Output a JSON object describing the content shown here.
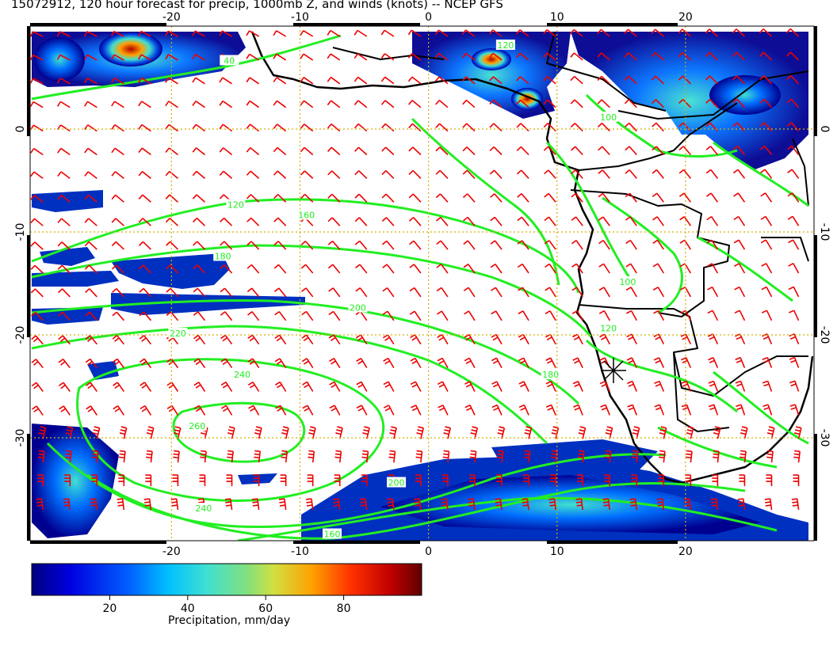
{
  "title": "15072912, 120 hour forecast for precip, 1000mb Z, and winds (knots) -- NCEP GFS",
  "map": {
    "lon_range": [
      -31,
      30
    ],
    "lat_range": [
      -40,
      10
    ],
    "lon_ticks": [
      "-20",
      "-10",
      "0",
      "10",
      "20"
    ],
    "lat_ticks": [
      "0",
      "-10",
      "-20",
      "-30"
    ],
    "grid": "dotted",
    "contour_color": "#22ee22",
    "wind_barb_color": "#ee0000",
    "coastline_color": "#000000",
    "contour_labels": [
      {
        "text": "40",
        "lon": -15.5,
        "lat": 6.5
      },
      {
        "text": "120",
        "lon": 6,
        "lat": 8
      },
      {
        "text": "100",
        "lon": 14,
        "lat": 1
      },
      {
        "text": "120",
        "lon": -15,
        "lat": -7.5
      },
      {
        "text": "160",
        "lon": -9.5,
        "lat": -8.5
      },
      {
        "text": "180",
        "lon": -16,
        "lat": -12.5
      },
      {
        "text": "100",
        "lon": 15.5,
        "lat": -15
      },
      {
        "text": "200",
        "lon": -5.5,
        "lat": -17.5
      },
      {
        "text": "220",
        "lon": -19.5,
        "lat": -20
      },
      {
        "text": "120",
        "lon": 14,
        "lat": -19.5
      },
      {
        "text": "240",
        "lon": -14.5,
        "lat": -24
      },
      {
        "text": "180",
        "lon": 9.5,
        "lat": -24
      },
      {
        "text": "260",
        "lon": -18,
        "lat": -29
      },
      {
        "text": "200",
        "lon": -2.5,
        "lat": -34.5
      },
      {
        "text": "240",
        "lon": -17.5,
        "lat": -37
      },
      {
        "text": "160",
        "lon": -7.5,
        "lat": -39.5
      }
    ]
  },
  "colorbar": {
    "label": "Precipitation, mm/day",
    "range": [
      0,
      100
    ],
    "ticks": [
      "20",
      "40",
      "60",
      "80"
    ],
    "tick_values": [
      20,
      40,
      60,
      80
    ],
    "colors": [
      "#000080",
      "#0000e0",
      "#0060ff",
      "#00c0ff",
      "#40e0d0",
      "#80e080",
      "#d0e040",
      "#ffa000",
      "#ff3000",
      "#c00000",
      "#600000"
    ]
  }
}
